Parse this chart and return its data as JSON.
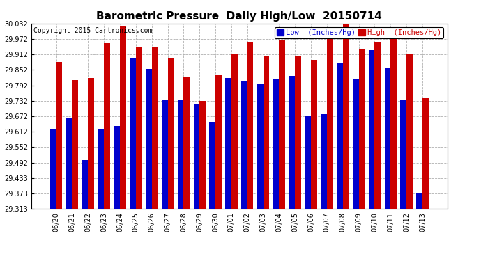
{
  "title": "Barometric Pressure  Daily High/Low  20150714",
  "copyright": "Copyright 2015 Cartronics.com",
  "legend_low": "Low  (Inches/Hg)",
  "legend_high": "High  (Inches/Hg)",
  "categories": [
    "06/20",
    "06/21",
    "06/22",
    "06/23",
    "06/24",
    "06/25",
    "06/26",
    "06/27",
    "06/28",
    "06/29",
    "06/30",
    "07/01",
    "07/02",
    "07/03",
    "07/04",
    "07/05",
    "07/06",
    "07/07",
    "07/08",
    "07/09",
    "07/10",
    "07/11",
    "07/12",
    "07/13"
  ],
  "low_values": [
    29.622,
    29.668,
    29.502,
    29.622,
    29.635,
    29.898,
    29.855,
    29.735,
    29.735,
    29.718,
    29.648,
    29.82,
    29.81,
    29.798,
    29.818,
    29.828,
    29.675,
    29.68,
    29.878,
    29.818,
    29.93,
    29.858,
    29.735,
    29.375
  ],
  "high_values": [
    29.882,
    29.812,
    29.822,
    29.955,
    30.022,
    29.942,
    29.942,
    29.895,
    29.825,
    29.732,
    29.832,
    29.912,
    29.958,
    29.908,
    29.968,
    29.908,
    29.892,
    30.002,
    30.032,
    29.935,
    29.962,
    30.012,
    29.912,
    29.742
  ],
  "ylim_min": 29.313,
  "ylim_max": 30.032,
  "yticks": [
    29.313,
    29.373,
    29.433,
    29.492,
    29.552,
    29.612,
    29.672,
    29.732,
    29.792,
    29.852,
    29.912,
    29.972,
    30.032
  ],
  "bar_width": 0.38,
  "low_color": "#0000cc",
  "high_color": "#cc0000",
  "bg_color": "#ffffff",
  "grid_color": "#b0b0b0",
  "title_fontsize": 11,
  "copyright_fontsize": 7,
  "tick_fontsize": 7,
  "legend_fontsize": 7.5
}
